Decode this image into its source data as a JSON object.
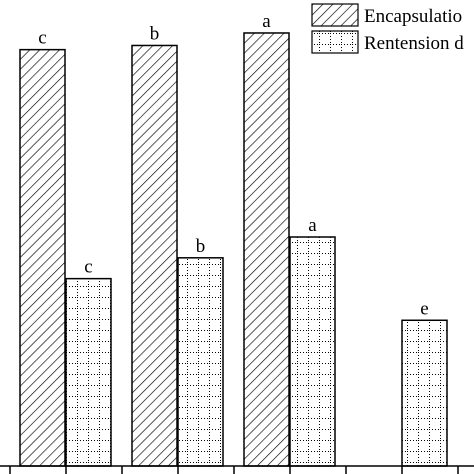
{
  "chart_data": {
    "type": "bar",
    "categories": [
      "",
      "",
      "",
      ""
    ],
    "series": [
      {
        "name": "Encapsulatio",
        "pattern": "diagonal-hatch",
        "values": [
          100,
          101,
          104,
          null
        ],
        "labels": [
          "c",
          "b",
          "a",
          ""
        ]
      },
      {
        "name": "Rentension d",
        "pattern": "dotted-grid",
        "values": [
          45,
          50,
          55,
          35
        ],
        "labels": [
          "c",
          "b",
          "a",
          "e"
        ]
      }
    ],
    "legend": "top-right",
    "grid": false,
    "ylim": [
      0,
      110
    ],
    "title": "",
    "xlabel": "",
    "ylabel": ""
  }
}
